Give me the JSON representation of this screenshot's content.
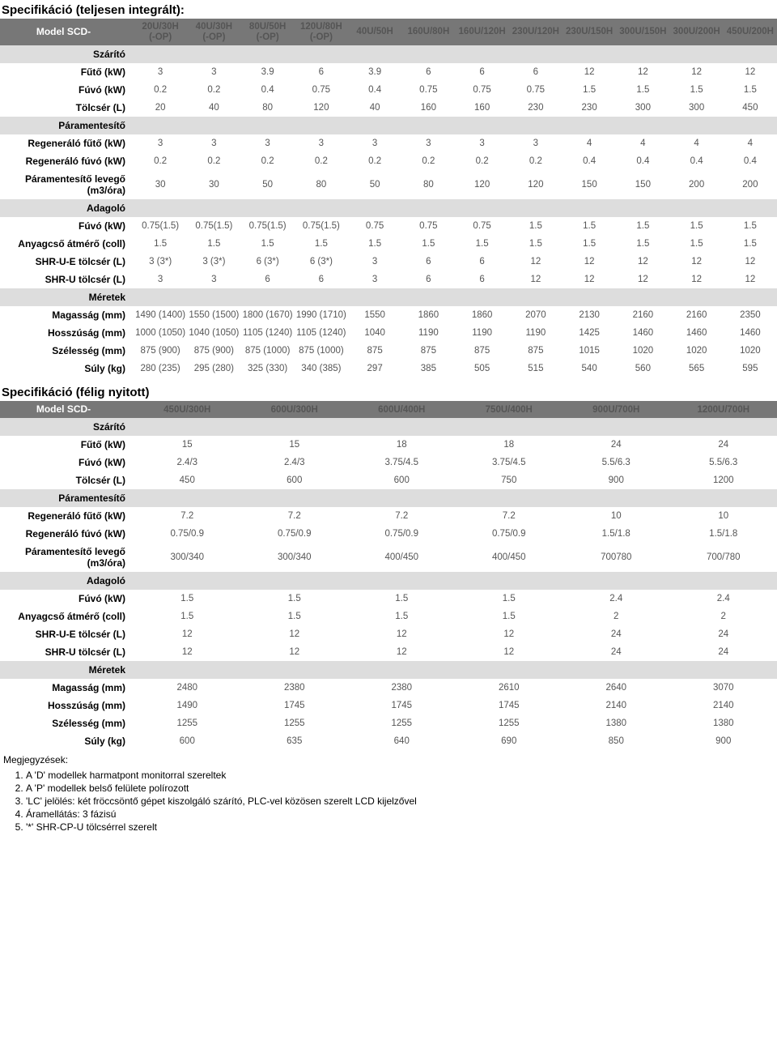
{
  "table1": {
    "title": "Specifikáció (teljesen integrált):",
    "modelLabel": "Model SCD-",
    "cols": [
      "20U/30H\n(-OP)",
      "40U/30H\n(-OP)",
      "80U/50H\n(-OP)",
      "120U/80H\n(-OP)",
      "40U/50H",
      "160U/80H",
      "160U/120H",
      "230U/120H",
      "230U/150H",
      "300U/150H",
      "300U/200H",
      "450U/200H"
    ],
    "rows": [
      {
        "type": "section",
        "label": "Szárító"
      },
      {
        "label": "Fűtő (kW)",
        "v": [
          "3",
          "3",
          "3.9",
          "6",
          "3.9",
          "6",
          "6",
          "6",
          "12",
          "12",
          "12",
          "12"
        ]
      },
      {
        "label": "Fúvó (kW)",
        "v": [
          "0.2",
          "0.2",
          "0.4",
          "0.75",
          "0.4",
          "0.75",
          "0.75",
          "0.75",
          "1.5",
          "1.5",
          "1.5",
          "1.5"
        ]
      },
      {
        "label": "Tölcsér (L)",
        "v": [
          "20",
          "40",
          "80",
          "120",
          "40",
          "160",
          "160",
          "230",
          "230",
          "300",
          "300",
          "450"
        ]
      },
      {
        "type": "section",
        "label": "Páramentesítő"
      },
      {
        "label": "Regeneráló fűtő (kW)",
        "v": [
          "3",
          "3",
          "3",
          "3",
          "3",
          "3",
          "3",
          "3",
          "4",
          "4",
          "4",
          "4"
        ]
      },
      {
        "label": "Regeneráló fúvó (kW)",
        "v": [
          "0.2",
          "0.2",
          "0.2",
          "0.2",
          "0.2",
          "0.2",
          "0.2",
          "0.2",
          "0.4",
          "0.4",
          "0.4",
          "0.4"
        ]
      },
      {
        "label": "Páramentesítő levegő\n(m3/óra)",
        "v": [
          "30",
          "30",
          "50",
          "80",
          "50",
          "80",
          "120",
          "120",
          "150",
          "150",
          "200",
          "200"
        ]
      },
      {
        "type": "section",
        "label": "Adagoló"
      },
      {
        "label": "Fúvó (kW)",
        "v": [
          "0.75(1.5)",
          "0.75(1.5)",
          "0.75(1.5)",
          "0.75(1.5)",
          "0.75",
          "0.75",
          "0.75",
          "1.5",
          "1.5",
          "1.5",
          "1.5",
          "1.5"
        ]
      },
      {
        "label": "Anyagcső átmérő (coll)",
        "v": [
          "1.5",
          "1.5",
          "1.5",
          "1.5",
          "1.5",
          "1.5",
          "1.5",
          "1.5",
          "1.5",
          "1.5",
          "1.5",
          "1.5"
        ]
      },
      {
        "label": "SHR-U-E tölcsér (L)",
        "v": [
          "3 (3*)",
          "3 (3*)",
          "6 (3*)",
          "6 (3*)",
          "3",
          "6",
          "6",
          "12",
          "12",
          "12",
          "12",
          "12"
        ]
      },
      {
        "label": "SHR-U tölcsér (L)",
        "v": [
          "3",
          "3",
          "6",
          "6",
          "3",
          "6",
          "6",
          "12",
          "12",
          "12",
          "12",
          "12"
        ]
      },
      {
        "type": "section",
        "label": "Méretek"
      },
      {
        "label": "Magasság (mm)",
        "v": [
          "1490 (1400)",
          "1550 (1500)",
          "1800 (1670)",
          "1990 (1710)",
          "1550",
          "1860",
          "1860",
          "2070",
          "2130",
          "2160",
          "2160",
          "2350"
        ]
      },
      {
        "label": "Hosszúság (mm)",
        "v": [
          "1000 (1050)",
          "1040 (1050)",
          "1105 (1240)",
          "1105 (1240)",
          "1040",
          "1190",
          "1190",
          "1190",
          "1425",
          "1460",
          "1460",
          "1460"
        ]
      },
      {
        "label": "Szélesség (mm)",
        "v": [
          "875 (900)",
          "875 (900)",
          "875 (1000)",
          "875 (1000)",
          "875",
          "875",
          "875",
          "875",
          "1015",
          "1020",
          "1020",
          "1020"
        ]
      },
      {
        "label": "Súly (kg)",
        "v": [
          "280 (235)",
          "295 (280)",
          "325 (330)",
          "340 (385)",
          "297",
          "385",
          "505",
          "515",
          "540",
          "560",
          "565",
          "595"
        ]
      }
    ]
  },
  "table2": {
    "title": "Specifikáció (félig nyitott)",
    "modelLabel": "Model SCD-",
    "cols": [
      "450U/300H",
      "600U/300H",
      "600U/400H",
      "750U/400H",
      "900U/700H",
      "1200U/700H"
    ],
    "rows": [
      {
        "type": "section",
        "label": "Szárító"
      },
      {
        "label": "Fűtő (kW)",
        "v": [
          "15",
          "15",
          "18",
          "18",
          "24",
          "24"
        ]
      },
      {
        "label": "Fúvó (kW)",
        "v": [
          "2.4/3",
          "2.4/3",
          "3.75/4.5",
          "3.75/4.5",
          "5.5/6.3",
          "5.5/6.3"
        ]
      },
      {
        "label": "Tölcsér (L)",
        "v": [
          "450",
          "600",
          "600",
          "750",
          "900",
          "1200"
        ]
      },
      {
        "type": "section",
        "label": "Páramentesítő"
      },
      {
        "label": "Regeneráló fűtő (kW)",
        "v": [
          "7.2",
          "7.2",
          "7.2",
          "7.2",
          "10",
          "10"
        ]
      },
      {
        "label": "Regeneráló fúvó (kW)",
        "v": [
          "0.75/0.9",
          "0.75/0.9",
          "0.75/0.9",
          "0.75/0.9",
          "1.5/1.8",
          "1.5/1.8"
        ]
      },
      {
        "label": "Páramentesítő levegő\n(m3/óra)",
        "v": [
          "300/340",
          "300/340",
          "400/450",
          "400/450",
          "700780",
          "700/780"
        ]
      },
      {
        "type": "section",
        "label": "Adagoló"
      },
      {
        "label": "Fúvó (kW)",
        "v": [
          "1.5",
          "1.5",
          "1.5",
          "1.5",
          "2.4",
          "2.4"
        ]
      },
      {
        "label": "Anyagcső átmérő (coll)",
        "v": [
          "1.5",
          "1.5",
          "1.5",
          "1.5",
          "2",
          "2"
        ]
      },
      {
        "label": "SHR-U-E tölcsér (L)",
        "v": [
          "12",
          "12",
          "12",
          "12",
          "24",
          "24"
        ]
      },
      {
        "label": "SHR-U tölcsér (L)",
        "v": [
          "12",
          "12",
          "12",
          "12",
          "24",
          "24"
        ]
      },
      {
        "type": "section",
        "label": "Méretek"
      },
      {
        "label": "Magasság (mm)",
        "v": [
          "2480",
          "2380",
          "2380",
          "2610",
          "2640",
          "3070"
        ]
      },
      {
        "label": "Hosszúság (mm)",
        "v": [
          "1490",
          "1745",
          "1745",
          "1745",
          "2140",
          "2140"
        ]
      },
      {
        "label": "Szélesség (mm)",
        "v": [
          "1255",
          "1255",
          "1255",
          "1255",
          "1380",
          "1380"
        ]
      },
      {
        "label": "Súly (kg)",
        "v": [
          "600",
          "635",
          "640",
          "690",
          "850",
          "900"
        ]
      }
    ]
  },
  "notes": {
    "title": "Megjegyzések:",
    "items": [
      "A 'D' modellek harmatpont monitorral szereltek",
      "A 'P' modellek belső felülete polírozott",
      "'LC' jelölés: két  fröccsöntő gépet kiszolgáló szárító, PLC-vel közösen szerelt LCD kijelzővel",
      "Áramellátás: 3 fázisú",
      "'*' SHR-CP-U tölcsérrel szerelt"
    ]
  }
}
